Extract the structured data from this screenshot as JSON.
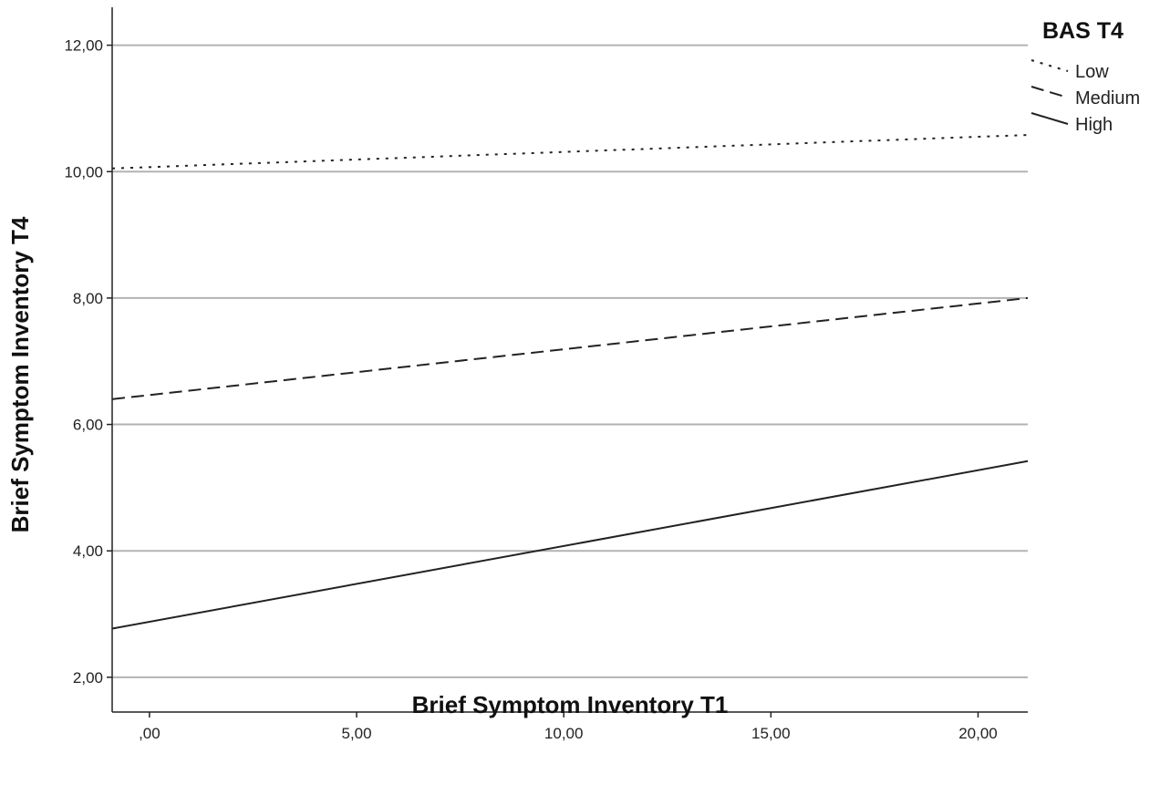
{
  "chart_data": {
    "type": "line",
    "title": "",
    "xlabel": "Brief Symptom Inventory T1",
    "ylabel": "Brief Symptom Inventory T4",
    "xlim": [
      -0.9,
      21.2
    ],
    "ylim": [
      1.45,
      12.6
    ],
    "x_ticks": [
      0,
      5,
      10,
      15,
      20
    ],
    "x_tick_labels": [
      ",00",
      "5,00",
      "10,00",
      "15,00",
      "20,00"
    ],
    "y_ticks": [
      2,
      4,
      6,
      8,
      10,
      12
    ],
    "y_tick_labels": [
      "2,00",
      "4,00",
      "6,00",
      "8,00",
      "10,00",
      "12,00"
    ],
    "grid": "horizontal",
    "legend": {
      "title": "BAS T4",
      "placement": "top-right"
    },
    "series": [
      {
        "name": "Low",
        "style": "dotted",
        "color": "#222222",
        "x": [
          -0.9,
          21.2
        ],
        "y": [
          10.05,
          10.58
        ]
      },
      {
        "name": "Medium",
        "style": "dashed",
        "color": "#222222",
        "x": [
          -0.9,
          21.2
        ],
        "y": [
          6.4,
          8.0
        ]
      },
      {
        "name": "High",
        "style": "solid",
        "color": "#222222",
        "x": [
          -0.9,
          21.2
        ],
        "y": [
          2.77,
          5.42
        ]
      }
    ]
  }
}
